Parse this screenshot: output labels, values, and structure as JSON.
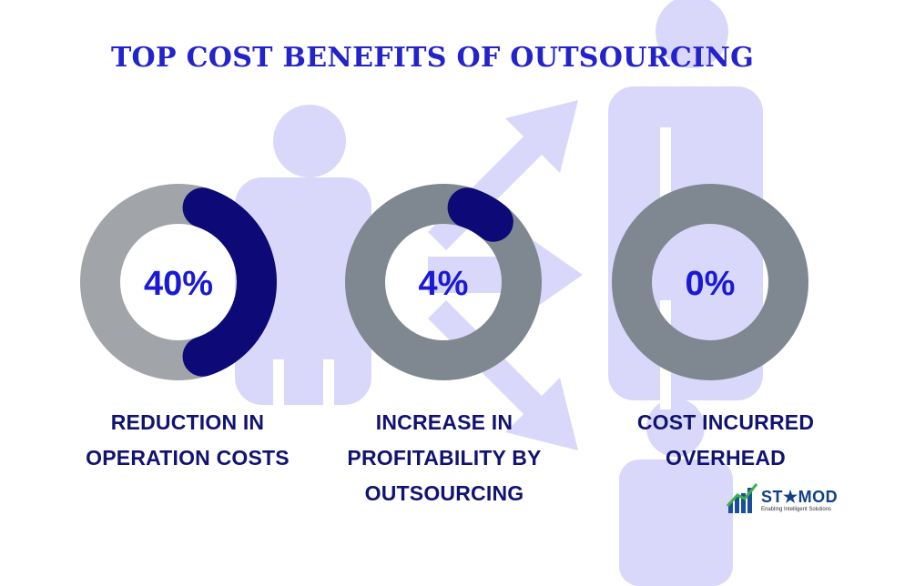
{
  "title": "TOP COST BENEFITS OF OUTSOURCING",
  "chart_data": {
    "type": "pie",
    "title": "TOP COST BENEFITS OF OUTSOURCING",
    "charts": [
      {
        "value": 40,
        "label": "40%",
        "caption": [
          "REDUCTION IN",
          "OPERATION COSTS"
        ]
      },
      {
        "value": 4,
        "label": "4%",
        "caption": [
          "INCREASE IN",
          "PROFITABILITY BY",
          "OUTSOURCING"
        ]
      },
      {
        "value": 0,
        "label": "0%",
        "caption": [
          "COST INCURRED",
          "OVERHEAD"
        ]
      }
    ],
    "colors": {
      "ring_left": "#a1a4a8",
      "ring_other": "#7f8891",
      "progress": "#0d0a78",
      "percent_text": "#1a1ad4",
      "caption_text": "#111370",
      "background_figures": "#d9d8fb"
    }
  },
  "logo": {
    "name": "ST★MOD",
    "tagline": "Enabling Intelligent Solutions"
  }
}
